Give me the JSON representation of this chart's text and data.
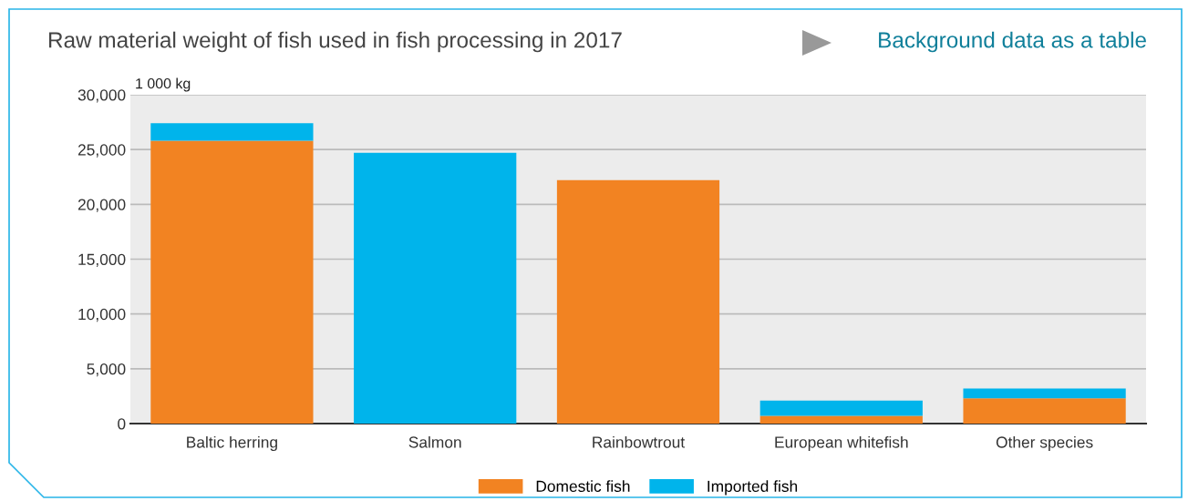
{
  "chart_data": {
    "type": "bar",
    "title": "Raw material weight of fish used in fish processing in 2017",
    "ylabel": "1 000 kg",
    "annotations": [
      "Background data as a table"
    ],
    "categories": [
      "Baltic herring",
      "Salmon",
      "Rainbowtrout",
      "European whitefish",
      "Other species"
    ],
    "stacked": true,
    "series": [
      {
        "name": "Domestic fish",
        "color": "#f28322",
        "values": [
          25800,
          0,
          22200,
          700,
          2300
        ]
      },
      {
        "name": "Imported fish",
        "color": "#00b4eb",
        "values": [
          1600,
          24700,
          0,
          1400,
          900
        ]
      }
    ],
    "ylim": [
      0,
      30000
    ],
    "yticks": [
      {
        "value": 0,
        "label": "0"
      },
      {
        "value": 5000,
        "label": "5,000"
      },
      {
        "value": 10000,
        "label": "10,000"
      },
      {
        "value": 15000,
        "label": "15,000"
      },
      {
        "value": 20000,
        "label": "20,000"
      },
      {
        "value": 25000,
        "label": "25,000"
      },
      {
        "value": 30000,
        "label": "30,000"
      }
    ],
    "grid": "y",
    "legend": "bottom"
  }
}
